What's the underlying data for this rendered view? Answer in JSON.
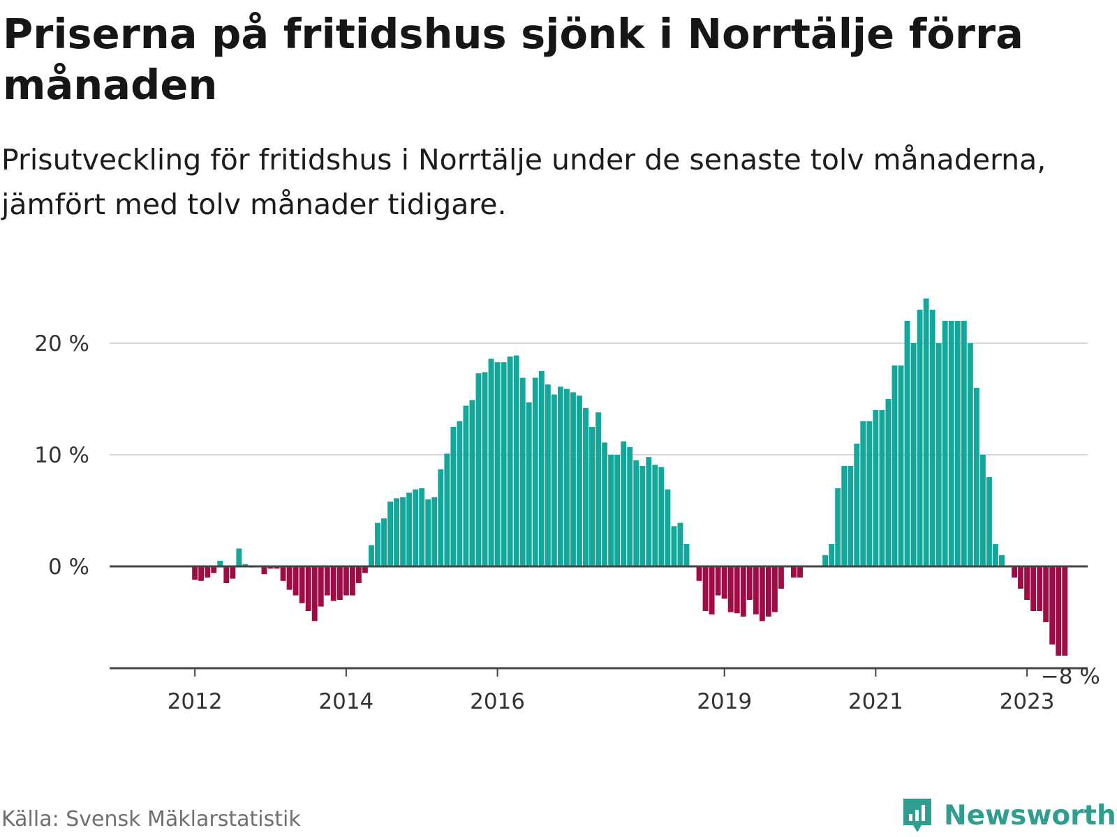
{
  "title": "Priserna på fritidshus sjönk i Norrtälje förra månaden",
  "subtitle": "Prisutveckling för fritidshus i Norrtälje under de senaste tolv månaderna, jämfört med tolv månader tidigare.",
  "source": "Källa: Svensk Mäklarstatistik",
  "brand": "Newsworthy",
  "colors": {
    "positive": "#13a69a",
    "negative": "#9e0b45",
    "grid": "#d9d9d9",
    "axis": "#444444"
  },
  "chart_data": {
    "type": "bar",
    "title": "Priserna på fritidshus sjönk i Norrtälje förra månaden",
    "xlabel": "",
    "ylabel": "",
    "ylim": [
      -9,
      24
    ],
    "grid": true,
    "y_ticks": [
      {
        "value": 0,
        "label": "0 %"
      },
      {
        "value": 10,
        "label": "10 %"
      },
      {
        "value": 20,
        "label": "20 %"
      }
    ],
    "x_ticks": [
      {
        "index": 6,
        "label": "2012"
      },
      {
        "index": 30,
        "label": "2014"
      },
      {
        "index": 54,
        "label": "2016"
      },
      {
        "index": 90,
        "label": "2019"
      },
      {
        "index": 114,
        "label": "2021"
      },
      {
        "index": 138,
        "label": "2023"
      }
    ],
    "end_label": "−8 %",
    "values": [
      0,
      0,
      0,
      0,
      0,
      0,
      -1.2,
      -1.3,
      -1.0,
      -0.6,
      0.5,
      -1.5,
      -1.1,
      1.6,
      0.2,
      -0.1,
      0,
      -0.7,
      -0.2,
      -0.2,
      -1.3,
      -2.1,
      -2.6,
      -3.3,
      -4.0,
      -4.9,
      -3.6,
      -2.6,
      -3.1,
      -3.0,
      -2.6,
      -2.6,
      -1.5,
      -0.6,
      1.9,
      3.9,
      4.3,
      5.8,
      6.1,
      6.2,
      6.6,
      6.9,
      7.0,
      6.0,
      6.2,
      8.7,
      10.1,
      12.5,
      13.0,
      14.4,
      14.9,
      17.3,
      17.4,
      18.6,
      18.3,
      18.3,
      18.8,
      18.9,
      16.9,
      14.7,
      16.9,
      17.5,
      16.3,
      15.4,
      16.1,
      15.9,
      15.6,
      15.3,
      14.2,
      12.5,
      13.8,
      11.1,
      10.0,
      10.0,
      11.2,
      10.7,
      9.5,
      9.0,
      9.8,
      9.1,
      8.9,
      6.9,
      3.6,
      3.9,
      2.0,
      0,
      -1.3,
      -4.0,
      -4.3,
      -2.6,
      -2.9,
      -4.1,
      -4.2,
      -4.5,
      -3.0,
      -4.3,
      -4.9,
      -4.5,
      -4.1,
      -2.0,
      0,
      -1.0,
      -1.0,
      0,
      0,
      0,
      1.0,
      2.0,
      7.0,
      9.0,
      9.0,
      11.0,
      13.0,
      13.0,
      14.0,
      14.0,
      15.0,
      18.0,
      18.0,
      22.0,
      20.0,
      23.0,
      24.0,
      23.0,
      20.0,
      22.0,
      22.0,
      22.0,
      22.0,
      20.0,
      16.0,
      10.0,
      8.0,
      2.0,
      1.0,
      0,
      -1.0,
      -2.0,
      -3.0,
      -4.0,
      -4.0,
      -5.0,
      -7.0,
      -8.0,
      -8.0
    ]
  }
}
